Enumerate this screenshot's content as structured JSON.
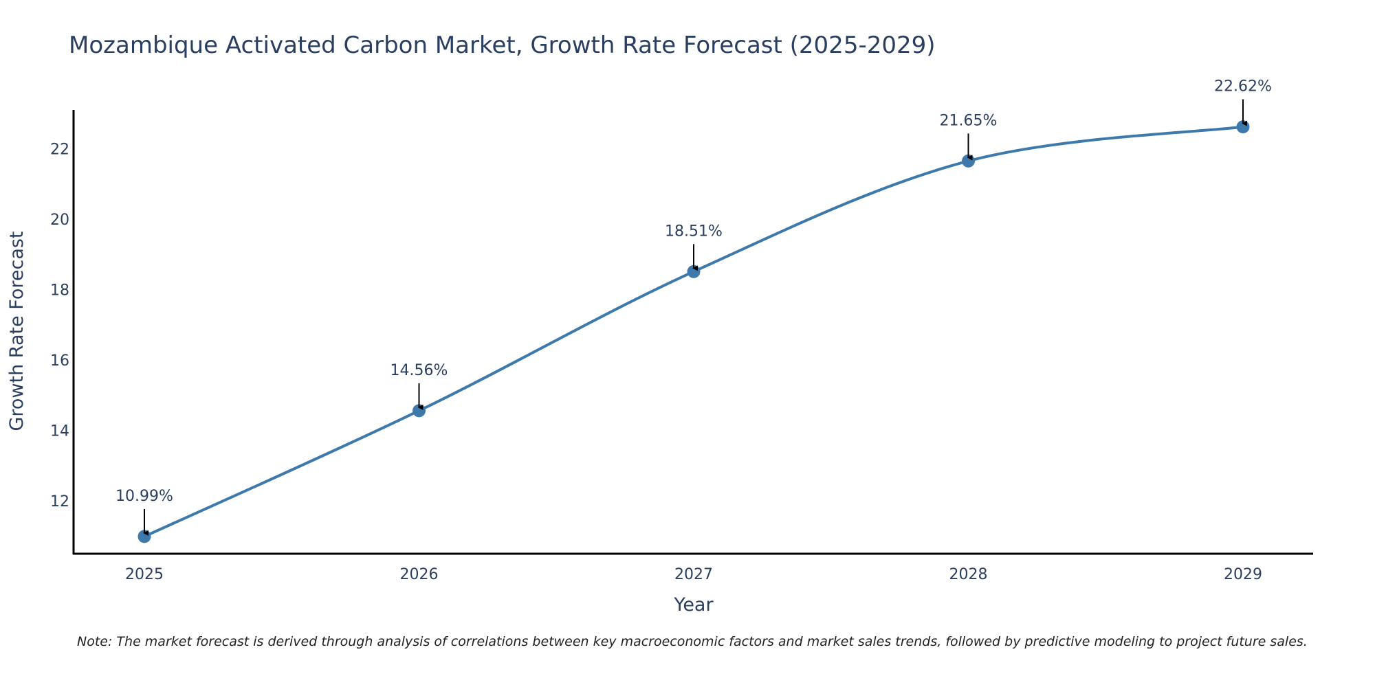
{
  "chart_data": {
    "type": "line",
    "title": "Mozambique Activated Carbon Market, Growth Rate Forecast (2025-2029)",
    "xlabel": "Year",
    "ylabel": "Growth Rate Forecast",
    "categories": [
      "2025",
      "2026",
      "2027",
      "2028",
      "2029"
    ],
    "values": [
      10.99,
      14.56,
      18.51,
      21.65,
      22.62
    ],
    "data_labels": [
      "10.99%",
      "14.56%",
      "18.51%",
      "21.65%",
      "22.62%"
    ],
    "ylim": [
      10.5,
      23.1
    ],
    "yticks": [
      12,
      14,
      16,
      18,
      20,
      22
    ],
    "line_color": "#3d7aab",
    "marker_color": "#3d7aab",
    "grid": false,
    "legend": "none"
  },
  "note": "Note: The market forecast is derived through analysis of correlations between key macroeconomic factors and market sales trends, followed by predictive modeling to project future sales."
}
